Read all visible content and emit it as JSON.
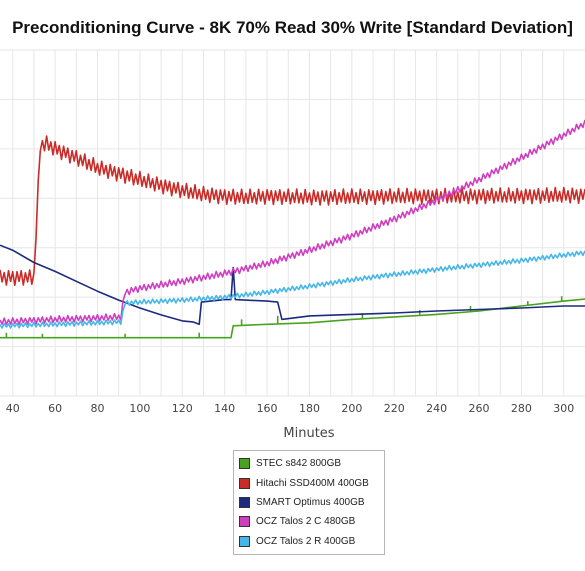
{
  "chart_data": {
    "type": "line",
    "title": "Preconditioning Curve - 8K 70% Read 30% Write [Standard Deviation]",
    "xlabel": "Minutes",
    "ylabel": "",
    "x_ticks": [
      40,
      60,
      80,
      100,
      120,
      140,
      160,
      180,
      200,
      220,
      240,
      260,
      280,
      300
    ],
    "xlim": [
      34,
      310
    ],
    "ylim": [
      0,
      7
    ],
    "grid": true,
    "legend_position": "bottom-center",
    "series": [
      {
        "name": "STEC s842 800GB",
        "color": "#4aa31f",
        "points": [
          [
            34,
            1.18
          ],
          [
            40,
            1.18
          ],
          [
            60,
            1.18
          ],
          [
            80,
            1.18
          ],
          [
            100,
            1.18
          ],
          [
            120,
            1.18
          ],
          [
            140,
            1.18
          ],
          [
            143,
            1.18
          ],
          [
            144,
            1.42
          ],
          [
            160,
            1.45
          ],
          [
            180,
            1.48
          ],
          [
            200,
            1.55
          ],
          [
            220,
            1.6
          ],
          [
            240,
            1.65
          ],
          [
            260,
            1.72
          ],
          [
            280,
            1.82
          ],
          [
            300,
            1.92
          ],
          [
            310,
            1.96
          ]
        ],
        "spikes": [
          [
            37,
            1.28
          ],
          [
            54,
            1.26
          ],
          [
            93,
            1.26
          ],
          [
            128,
            1.28
          ],
          [
            148,
            1.55
          ],
          [
            165,
            1.62
          ],
          [
            205,
            1.68
          ],
          [
            232,
            1.74
          ],
          [
            256,
            1.82
          ],
          [
            283,
            1.92
          ],
          [
            299,
            2.02
          ]
        ]
      },
      {
        "name": "Hitachi SSD400M 400GB",
        "color": "#c92c28",
        "points": [
          [
            34,
            2.4
          ],
          [
            50,
            2.4
          ],
          [
            53,
            5.08
          ],
          [
            56,
            5.1
          ],
          [
            60,
            5.0
          ],
          [
            70,
            4.82
          ],
          [
            80,
            4.62
          ],
          [
            90,
            4.5
          ],
          [
            100,
            4.38
          ],
          [
            110,
            4.26
          ],
          [
            120,
            4.16
          ],
          [
            130,
            4.08
          ],
          [
            140,
            4.04
          ],
          [
            150,
            4.02
          ],
          [
            160,
            4.04
          ],
          [
            180,
            4.02
          ],
          [
            200,
            4.03
          ],
          [
            220,
            4.04
          ],
          [
            240,
            4.04
          ],
          [
            260,
            4.05
          ],
          [
            280,
            4.05
          ],
          [
            300,
            4.06
          ],
          [
            310,
            4.06
          ]
        ],
        "amplitude": 0.16
      },
      {
        "name": "SMART Optimus 400GB",
        "color": "#1c2a80",
        "points": [
          [
            34,
            3.05
          ],
          [
            40,
            2.95
          ],
          [
            50,
            2.7
          ],
          [
            60,
            2.52
          ],
          [
            70,
            2.32
          ],
          [
            80,
            2.12
          ],
          [
            90,
            1.94
          ],
          [
            100,
            1.78
          ],
          [
            110,
            1.64
          ],
          [
            120,
            1.52
          ],
          [
            125,
            1.5
          ],
          [
            128,
            1.45
          ],
          [
            129,
            1.9
          ],
          [
            140,
            1.95
          ],
          [
            143,
            1.95
          ],
          [
            144,
            2.6
          ],
          [
            145,
            1.95
          ],
          [
            160,
            1.92
          ],
          [
            165,
            1.9
          ],
          [
            167,
            1.55
          ],
          [
            180,
            1.62
          ],
          [
            200,
            1.65
          ],
          [
            220,
            1.68
          ],
          [
            240,
            1.72
          ],
          [
            260,
            1.75
          ],
          [
            280,
            1.78
          ],
          [
            300,
            1.82
          ],
          [
            310,
            1.82
          ]
        ]
      },
      {
        "name": "OCZ Talos 2 C 480GB",
        "color": "#cf3ec1",
        "points": [
          [
            34,
            1.5
          ],
          [
            60,
            1.55
          ],
          [
            80,
            1.58
          ],
          [
            91,
            1.6
          ],
          [
            93,
            2.1
          ],
          [
            100,
            2.18
          ],
          [
            120,
            2.32
          ],
          [
            140,
            2.48
          ],
          [
            160,
            2.68
          ],
          [
            180,
            2.95
          ],
          [
            200,
            3.24
          ],
          [
            220,
            3.58
          ],
          [
            240,
            3.96
          ],
          [
            260,
            4.38
          ],
          [
            280,
            4.82
          ],
          [
            300,
            5.28
          ],
          [
            310,
            5.52
          ]
        ],
        "amplitude": 0.07
      },
      {
        "name": "OCZ Talos 2 R 400GB",
        "color": "#45b7e8",
        "points": [
          [
            34,
            1.42
          ],
          [
            60,
            1.45
          ],
          [
            80,
            1.48
          ],
          [
            91,
            1.5
          ],
          [
            93,
            1.88
          ],
          [
            100,
            1.9
          ],
          [
            120,
            1.94
          ],
          [
            140,
            2.0
          ],
          [
            160,
            2.1
          ],
          [
            180,
            2.22
          ],
          [
            200,
            2.35
          ],
          [
            220,
            2.46
          ],
          [
            240,
            2.56
          ],
          [
            260,
            2.65
          ],
          [
            280,
            2.74
          ],
          [
            300,
            2.85
          ],
          [
            310,
            2.9
          ]
        ],
        "amplitude": 0.05
      }
    ]
  }
}
